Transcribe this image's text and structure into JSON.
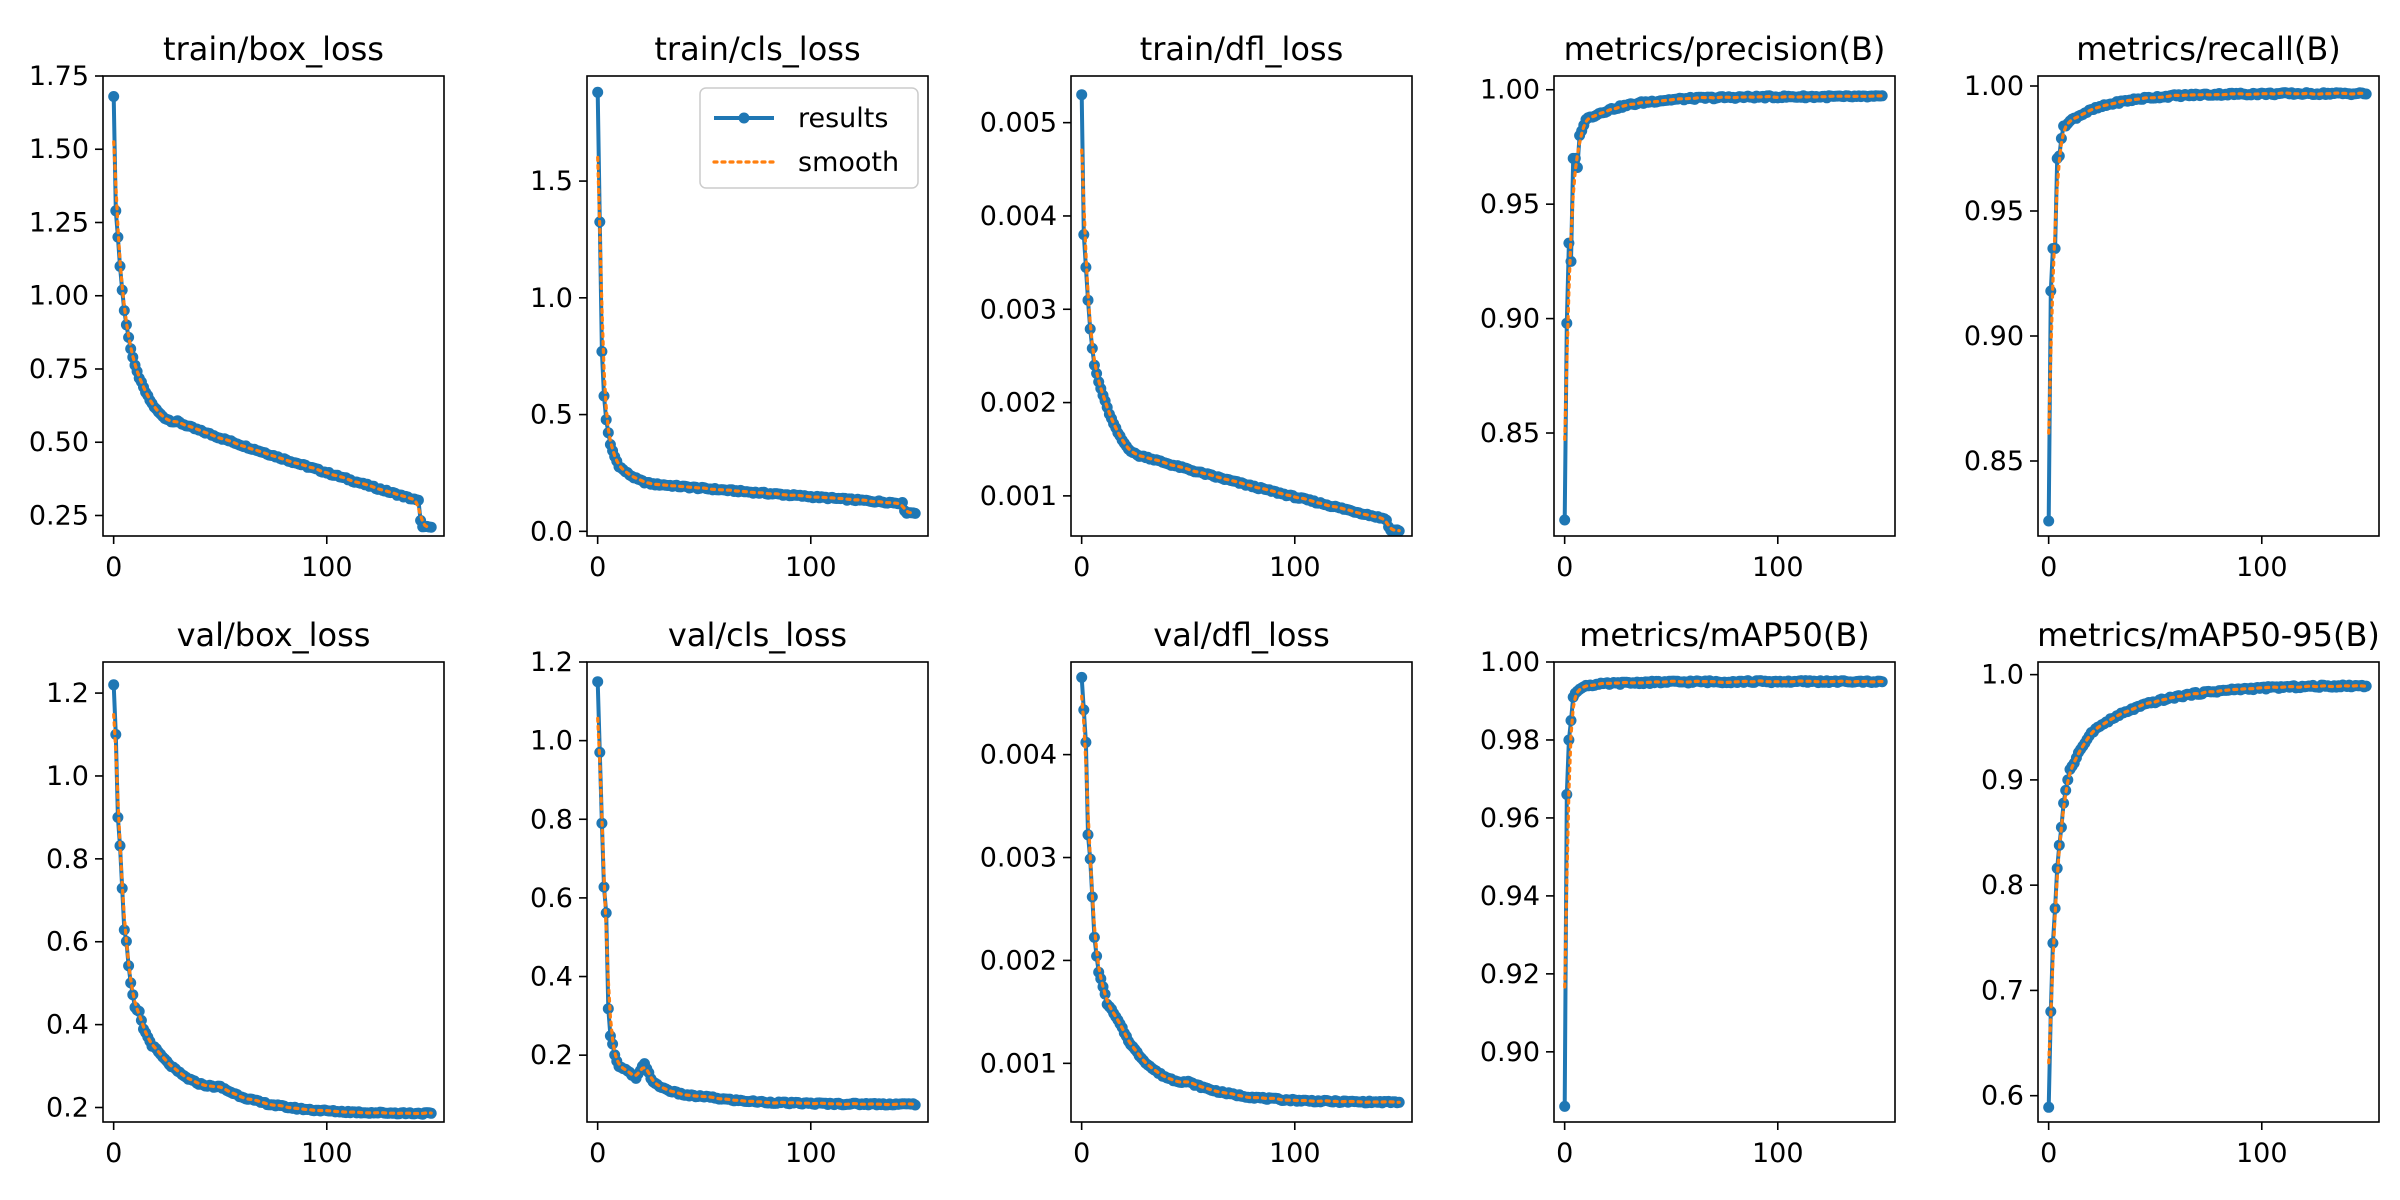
{
  "chart_data": [
    {
      "type": "line",
      "title": "train/box_loss",
      "ylim": [
        0.18,
        1.75
      ],
      "xlim": [
        -5,
        155
      ],
      "yticks": [
        0.25,
        0.5,
        0.75,
        1.0,
        1.25,
        1.5,
        1.75
      ],
      "ytick_labels": [
        "0.25",
        "0.50",
        "0.75",
        "1.00",
        "1.25",
        "1.50",
        "1.75"
      ],
      "xticks": [
        0,
        100
      ],
      "xtick_labels": [
        "0",
        "100"
      ],
      "series": [
        {
          "name": "results",
          "color": "#1f77b4",
          "style": "line-marker"
        },
        {
          "name": "smooth",
          "color": "#ff7f0e",
          "style": "dotted"
        }
      ],
      "curve": {
        "kind": "loss",
        "start": 1.68,
        "drops": [
          [
            1,
            1.29
          ],
          [
            2,
            1.2
          ],
          [
            3,
            1.1
          ],
          [
            4,
            1.02
          ],
          [
            5,
            0.95
          ],
          [
            6,
            0.9
          ],
          [
            7,
            0.86
          ],
          [
            8,
            0.82
          ],
          [
            9,
            0.79
          ],
          [
            10,
            0.76
          ]
        ],
        "knee": 10,
        "knee_val": 0.76,
        "mid": 30,
        "mid_val": 0.57,
        "end": 143,
        "end_val": 0.3,
        "tail_val": 0.21
      }
    },
    {
      "type": "line",
      "title": "train/cls_loss",
      "ylim": [
        -0.02,
        1.95
      ],
      "xlim": [
        -5,
        155
      ],
      "yticks": [
        0.0,
        0.5,
        1.0,
        1.5
      ],
      "ytick_labels": [
        "0.0",
        "0.5",
        "1.0",
        "1.5"
      ],
      "xticks": [
        0,
        100
      ],
      "xtick_labels": [
        "0",
        "100"
      ],
      "series": [
        {
          "name": "results",
          "color": "#1f77b4",
          "style": "line-marker"
        },
        {
          "name": "smooth",
          "color": "#ff7f0e",
          "style": "dotted"
        }
      ],
      "legend": {
        "position": "upper right",
        "entries": [
          "results",
          "smooth"
        ]
      },
      "curve": {
        "kind": "loss",
        "start": 1.88,
        "drops": [
          [
            2,
            0.77
          ],
          [
            3,
            0.58
          ],
          [
            4,
            0.48
          ],
          [
            5,
            0.42
          ],
          [
            6,
            0.37
          ],
          [
            8,
            0.32
          ],
          [
            10,
            0.28
          ]
        ],
        "knee": 10,
        "knee_val": 0.28,
        "mid": 30,
        "mid_val": 0.2,
        "end": 143,
        "end_val": 0.12,
        "tail_val": 0.08
      }
    },
    {
      "type": "line",
      "title": "train/dfl_loss",
      "ylim": [
        0.00057,
        0.0055
      ],
      "xlim": [
        -5,
        155
      ],
      "yticks": [
        0.001,
        0.002,
        0.003,
        0.004,
        0.005
      ],
      "ytick_labels": [
        "0.001",
        "0.002",
        "0.003",
        "0.004",
        "0.005"
      ],
      "xticks": [
        0,
        100
      ],
      "xtick_labels": [
        "0",
        "100"
      ],
      "series": [
        {
          "name": "results",
          "color": "#1f77b4",
          "style": "line-marker"
        },
        {
          "name": "smooth",
          "color": "#ff7f0e",
          "style": "dotted"
        }
      ],
      "curve": {
        "kind": "loss",
        "start": 0.0053,
        "drops": [
          [
            1,
            0.0038
          ],
          [
            2,
            0.00345
          ],
          [
            3,
            0.0031
          ],
          [
            4,
            0.00278
          ],
          [
            5,
            0.00258
          ],
          [
            6,
            0.0024
          ],
          [
            8,
            0.00222
          ],
          [
            10,
            0.00208
          ]
        ],
        "knee": 10,
        "knee_val": 0.00208,
        "mid": 30,
        "mid_val": 0.00142,
        "end": 143,
        "end_val": 0.00075,
        "tail_val": 0.00063
      }
    },
    {
      "type": "line",
      "title": "metrics/precision(B)",
      "ylim": [
        0.805,
        1.006
      ],
      "xlim": [
        -5,
        155
      ],
      "yticks": [
        0.85,
        0.9,
        0.95,
        1.0
      ],
      "ytick_labels": [
        "0.85",
        "0.90",
        "0.95",
        "1.00"
      ],
      "xticks": [
        0,
        100
      ],
      "xtick_labels": [
        "0",
        "100"
      ],
      "series": [
        {
          "name": "results",
          "color": "#1f77b4",
          "style": "line-marker"
        },
        {
          "name": "smooth",
          "color": "#ff7f0e",
          "style": "dotted"
        }
      ],
      "curve": {
        "kind": "metric",
        "start": 0.812,
        "rise": [
          [
            1,
            0.898
          ],
          [
            2,
            0.933
          ],
          [
            3,
            0.925
          ],
          [
            4,
            0.97
          ],
          [
            5,
            0.97
          ],
          [
            6,
            0.966
          ],
          [
            7,
            0.98
          ],
          [
            8,
            0.982
          ],
          [
            10,
            0.987
          ]
        ],
        "plateau": 0.997,
        "rate": 0.05
      }
    },
    {
      "type": "line",
      "title": "metrics/recall(B)",
      "ylim": [
        0.82,
        1.004
      ],
      "xlim": [
        -5,
        155
      ],
      "yticks": [
        0.85,
        0.9,
        0.95,
        1.0
      ],
      "ytick_labels": [
        "0.85",
        "0.90",
        "0.95",
        "1.00"
      ],
      "xticks": [
        0,
        100
      ],
      "xtick_labels": [
        "0",
        "100"
      ],
      "series": [
        {
          "name": "results",
          "color": "#1f77b4",
          "style": "line-marker"
        },
        {
          "name": "smooth",
          "color": "#ff7f0e",
          "style": "dotted"
        }
      ],
      "curve": {
        "kind": "metric",
        "start": 0.826,
        "rise": [
          [
            1,
            0.918
          ],
          [
            2,
            0.935
          ],
          [
            3,
            0.935
          ],
          [
            4,
            0.971
          ],
          [
            5,
            0.972
          ],
          [
            6,
            0.979
          ],
          [
            7,
            0.984
          ],
          [
            8,
            0.984
          ],
          [
            10,
            0.986
          ]
        ],
        "plateau": 0.997,
        "rate": 0.05
      }
    },
    {
      "type": "line",
      "title": "val/box_loss",
      "ylim": [
        0.165,
        1.275
      ],
      "xlim": [
        -5,
        155
      ],
      "yticks": [
        0.2,
        0.4,
        0.6,
        0.8,
        1.0,
        1.2
      ],
      "ytick_labels": [
        "0.2",
        "0.4",
        "0.6",
        "0.8",
        "1.0",
        "1.2"
      ],
      "xticks": [
        0,
        100
      ],
      "xtick_labels": [
        "0",
        "100"
      ],
      "series": [
        {
          "name": "results",
          "color": "#1f77b4",
          "style": "line-marker"
        },
        {
          "name": "smooth",
          "color": "#ff7f0e",
          "style": "dotted"
        }
      ],
      "curve": {
        "kind": "loss",
        "start": 1.22,
        "drops": [
          [
            1,
            1.1
          ],
          [
            2,
            0.9
          ],
          [
            3,
            0.83
          ],
          [
            4,
            0.73
          ],
          [
            5,
            0.63
          ],
          [
            6,
            0.6
          ],
          [
            7,
            0.54
          ],
          [
            8,
            0.5
          ],
          [
            10,
            0.44
          ],
          [
            12,
            0.43
          ],
          [
            14,
            0.39
          ],
          [
            16,
            0.37
          ],
          [
            18,
            0.35
          ],
          [
            20,
            0.34
          ]
        ],
        "knee": 20,
        "knee_val": 0.34,
        "mid": 50,
        "mid_val": 0.25,
        "end": 150,
        "end_val": 0.185,
        "tail_val": 0.185
      }
    },
    {
      "type": "line",
      "title": "val/cls_loss",
      "ylim": [
        0.03,
        1.2
      ],
      "xlim": [
        -5,
        155
      ],
      "yticks": [
        0.2,
        0.4,
        0.6,
        0.8,
        1.0,
        1.2
      ],
      "ytick_labels": [
        "0.2",
        "0.4",
        "0.6",
        "0.8",
        "1.0",
        "1.2"
      ],
      "xticks": [
        0,
        100
      ],
      "xtick_labels": [
        "0",
        "100"
      ],
      "series": [
        {
          "name": "results",
          "color": "#1f77b4",
          "style": "line-marker"
        },
        {
          "name": "smooth",
          "color": "#ff7f0e",
          "style": "dotted"
        }
      ],
      "curve": {
        "kind": "loss",
        "start": 1.15,
        "drops": [
          [
            2,
            0.79
          ],
          [
            3,
            0.63
          ],
          [
            4,
            0.56
          ],
          [
            5,
            0.32
          ],
          [
            6,
            0.25
          ],
          [
            7,
            0.23
          ],
          [
            8,
            0.2
          ],
          [
            10,
            0.17
          ],
          [
            14,
            0.16
          ],
          [
            18,
            0.14
          ],
          [
            22,
            0.18
          ],
          [
            26,
            0.13
          ]
        ],
        "knee": 26,
        "knee_val": 0.13,
        "mid": 50,
        "mid_val": 0.095,
        "end": 150,
        "end_val": 0.075,
        "tail_val": 0.075
      }
    },
    {
      "type": "line",
      "title": "val/dfl_loss",
      "ylim": [
        0.00043,
        0.0049
      ],
      "xlim": [
        -5,
        155
      ],
      "yticks": [
        0.001,
        0.002,
        0.003,
        0.004
      ],
      "ytick_labels": [
        "0.001",
        "0.002",
        "0.003",
        "0.004"
      ],
      "xticks": [
        0,
        100
      ],
      "xtick_labels": [
        "0",
        "100"
      ],
      "series": [
        {
          "name": "results",
          "color": "#1f77b4",
          "style": "line-marker"
        },
        {
          "name": "smooth",
          "color": "#ff7f0e",
          "style": "dotted"
        }
      ],
      "curve": {
        "kind": "loss",
        "start": 0.00475,
        "drops": [
          [
            2,
            0.00412
          ],
          [
            3,
            0.00322
          ],
          [
            4,
            0.00298
          ],
          [
            5,
            0.00262
          ],
          [
            6,
            0.00222
          ],
          [
            7,
            0.00205
          ],
          [
            8,
            0.00188
          ],
          [
            10,
            0.00175
          ],
          [
            12,
            0.00158
          ],
          [
            14,
            0.00152
          ],
          [
            18,
            0.00138
          ],
          [
            22,
            0.00122
          ]
        ],
        "knee": 22,
        "knee_val": 0.00122,
        "mid": 50,
        "mid_val": 0.00082,
        "end": 150,
        "end_val": 0.00062,
        "tail_val": 0.00062
      }
    },
    {
      "type": "line",
      "title": "metrics/mAP50(B)",
      "ylim": [
        0.882,
        1.0
      ],
      "xlim": [
        -5,
        155
      ],
      "yticks": [
        0.9,
        0.92,
        0.94,
        0.96,
        0.98,
        1.0
      ],
      "ytick_labels": [
        "0.90",
        "0.92",
        "0.94",
        "0.96",
        "0.98",
        "1.00"
      ],
      "xticks": [
        0,
        100
      ],
      "xtick_labels": [
        "0",
        "100"
      ],
      "series": [
        {
          "name": "results",
          "color": "#1f77b4",
          "style": "line-marker"
        },
        {
          "name": "smooth",
          "color": "#ff7f0e",
          "style": "dotted"
        }
      ],
      "curve": {
        "kind": "metric",
        "start": 0.886,
        "rise": [
          [
            1,
            0.966
          ],
          [
            2,
            0.98
          ],
          [
            3,
            0.985
          ],
          [
            4,
            0.991
          ],
          [
            5,
            0.992
          ],
          [
            7,
            0.993
          ],
          [
            10,
            0.994
          ]
        ],
        "plateau": 0.995,
        "rate": 0.05
      }
    },
    {
      "type": "line",
      "title": "metrics/mAP50-95(B)",
      "ylim": [
        0.575,
        1.012
      ],
      "xlim": [
        -5,
        155
      ],
      "yticks": [
        0.6,
        0.7,
        0.8,
        0.9,
        1.0
      ],
      "ytick_labels": [
        "0.6",
        "0.7",
        "0.8",
        "0.9",
        "1.0"
      ],
      "xticks": [
        0,
        100
      ],
      "xtick_labels": [
        "0",
        "100"
      ],
      "series": [
        {
          "name": "results",
          "color": "#1f77b4",
          "style": "line-marker"
        },
        {
          "name": "smooth",
          "color": "#ff7f0e",
          "style": "dotted"
        }
      ],
      "curve": {
        "kind": "metric",
        "start": 0.589,
        "rise": [
          [
            1,
            0.68
          ],
          [
            2,
            0.745
          ],
          [
            3,
            0.778
          ],
          [
            4,
            0.816
          ],
          [
            5,
            0.838
          ],
          [
            6,
            0.855
          ],
          [
            7,
            0.878
          ],
          [
            8,
            0.89
          ],
          [
            10,
            0.91
          ],
          [
            12,
            0.916
          ],
          [
            14,
            0.926
          ],
          [
            17,
            0.935
          ],
          [
            20,
            0.945
          ]
        ],
        "plateau": 0.99,
        "rate": 0.035
      }
    }
  ]
}
